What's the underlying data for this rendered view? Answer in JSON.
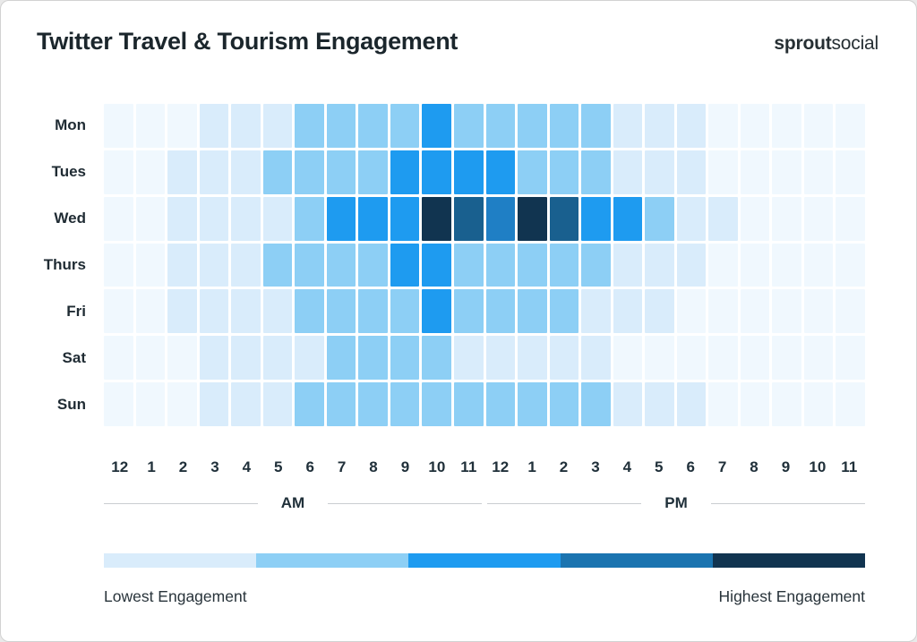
{
  "header": {
    "title": "Twitter Travel & Tourism Engagement",
    "logo": {
      "bold": "sprout",
      "light": "social"
    }
  },
  "chart_data": {
    "type": "heatmap",
    "title": "Twitter Travel & Tourism Engagement",
    "rows": [
      "Mon",
      "Tues",
      "Wed",
      "Thurs",
      "Fri",
      "Sat",
      "Sun"
    ],
    "columns": [
      "12",
      "1",
      "2",
      "3",
      "4",
      "5",
      "6",
      "7",
      "8",
      "9",
      "10",
      "11",
      "12",
      "1",
      "2",
      "3",
      "4",
      "5",
      "6",
      "7",
      "8",
      "9",
      "10",
      "11"
    ],
    "period_labels": {
      "am": "AM",
      "pm": "PM"
    },
    "value_note": "relative engagement level inferred from cell color (0 lowest - 7 highest)",
    "values": [
      [
        0,
        0,
        0,
        1,
        1,
        1,
        2,
        2,
        2,
        2,
        3,
        2,
        2,
        2,
        2,
        2,
        1,
        1,
        1,
        0,
        0,
        0,
        0,
        0
      ],
      [
        0,
        0,
        1,
        1,
        1,
        2,
        2,
        2,
        2,
        3,
        3,
        3,
        3,
        2,
        2,
        2,
        1,
        1,
        1,
        0,
        0,
        0,
        0,
        0
      ],
      [
        0,
        0,
        1,
        1,
        1,
        1,
        2,
        3,
        3,
        3,
        7,
        6,
        4,
        7,
        6,
        3,
        3,
        2,
        1,
        1,
        0,
        0,
        0,
        0
      ],
      [
        0,
        0,
        1,
        1,
        1,
        2,
        2,
        2,
        2,
        3,
        3,
        2,
        2,
        2,
        2,
        2,
        1,
        1,
        1,
        0,
        0,
        0,
        0,
        0
      ],
      [
        0,
        0,
        1,
        1,
        1,
        1,
        2,
        2,
        2,
        2,
        3,
        2,
        2,
        2,
        2,
        1,
        1,
        1,
        0,
        0,
        0,
        0,
        0,
        0
      ],
      [
        0,
        0,
        0,
        1,
        1,
        1,
        1,
        2,
        2,
        2,
        2,
        1,
        1,
        1,
        1,
        1,
        0,
        0,
        0,
        0,
        0,
        0,
        0,
        0
      ],
      [
        0,
        0,
        0,
        1,
        1,
        1,
        2,
        2,
        2,
        2,
        2,
        2,
        2,
        2,
        2,
        2,
        1,
        1,
        1,
        0,
        0,
        0,
        0,
        0
      ]
    ],
    "level_colors": [
      "#F0F8FE",
      "#D9ECFB",
      "#8DCFF5",
      "#1E9BF0",
      "#1F7FC5",
      "#1B74B0",
      "#19608F",
      "#113450"
    ],
    "legend": {
      "colors": [
        "#D9ECFB",
        "#8DCFF5",
        "#1E9BF0",
        "#1B74B0",
        "#113450"
      ],
      "low_label": "Lowest Engagement",
      "high_label": "Highest Engagement"
    },
    "layout": {
      "grid": "24 columns x 7 rows, white 3px gaps",
      "legend_position": "bottom"
    }
  }
}
